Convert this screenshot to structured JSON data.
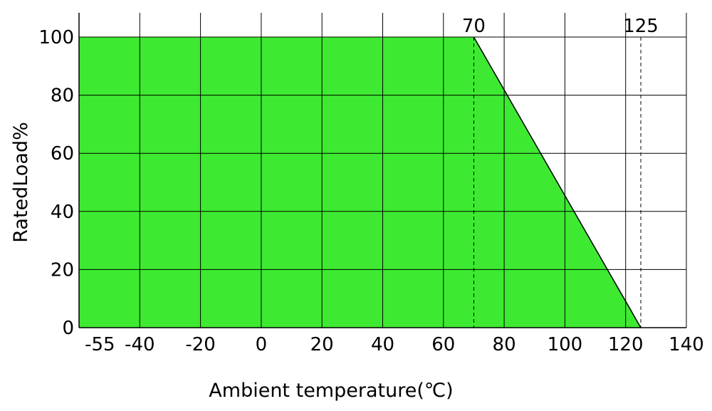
{
  "chart_data": {
    "type": "area",
    "title": "",
    "xlabel": "Ambient temperature(℃)",
    "ylabel": "RatedLoad%",
    "xlim": [
      -60,
      140
    ],
    "ylim": [
      0,
      100
    ],
    "x_ticks": [
      {
        "value": -55,
        "label": "-55"
      },
      {
        "value": -40,
        "label": "-40"
      },
      {
        "value": -20,
        "label": "-20"
      },
      {
        "value": 0,
        "label": "0"
      },
      {
        "value": 20,
        "label": "20"
      },
      {
        "value": 40,
        "label": "40"
      },
      {
        "value": 60,
        "label": "60"
      },
      {
        "value": 80,
        "label": "80"
      },
      {
        "value": 100,
        "label": "100"
      },
      {
        "value": 120,
        "label": "120"
      },
      {
        "value": 140,
        "label": "140"
      }
    ],
    "y_ticks": [
      {
        "value": 0,
        "label": "0"
      },
      {
        "value": 20,
        "label": "20"
      },
      {
        "value": 40,
        "label": "40"
      },
      {
        "value": 60,
        "label": "60"
      },
      {
        "value": 80,
        "label": "80"
      },
      {
        "value": 100,
        "label": "100"
      }
    ],
    "x_grid": [
      -40,
      -20,
      0,
      20,
      40,
      60,
      80,
      100,
      120,
      140
    ],
    "y_grid": [
      0,
      20,
      40,
      60,
      80,
      100
    ],
    "grid": true,
    "series": [
      {
        "x": [
          -60,
          70,
          125
        ],
        "y": [
          100,
          100,
          0
        ]
      }
    ],
    "fill_color": "#3dea31",
    "annotations": [
      {
        "x": 70,
        "label": "70",
        "style": "dashed-vertical"
      },
      {
        "x": 125,
        "label": "125",
        "style": "dashed-vertical"
      }
    ]
  }
}
